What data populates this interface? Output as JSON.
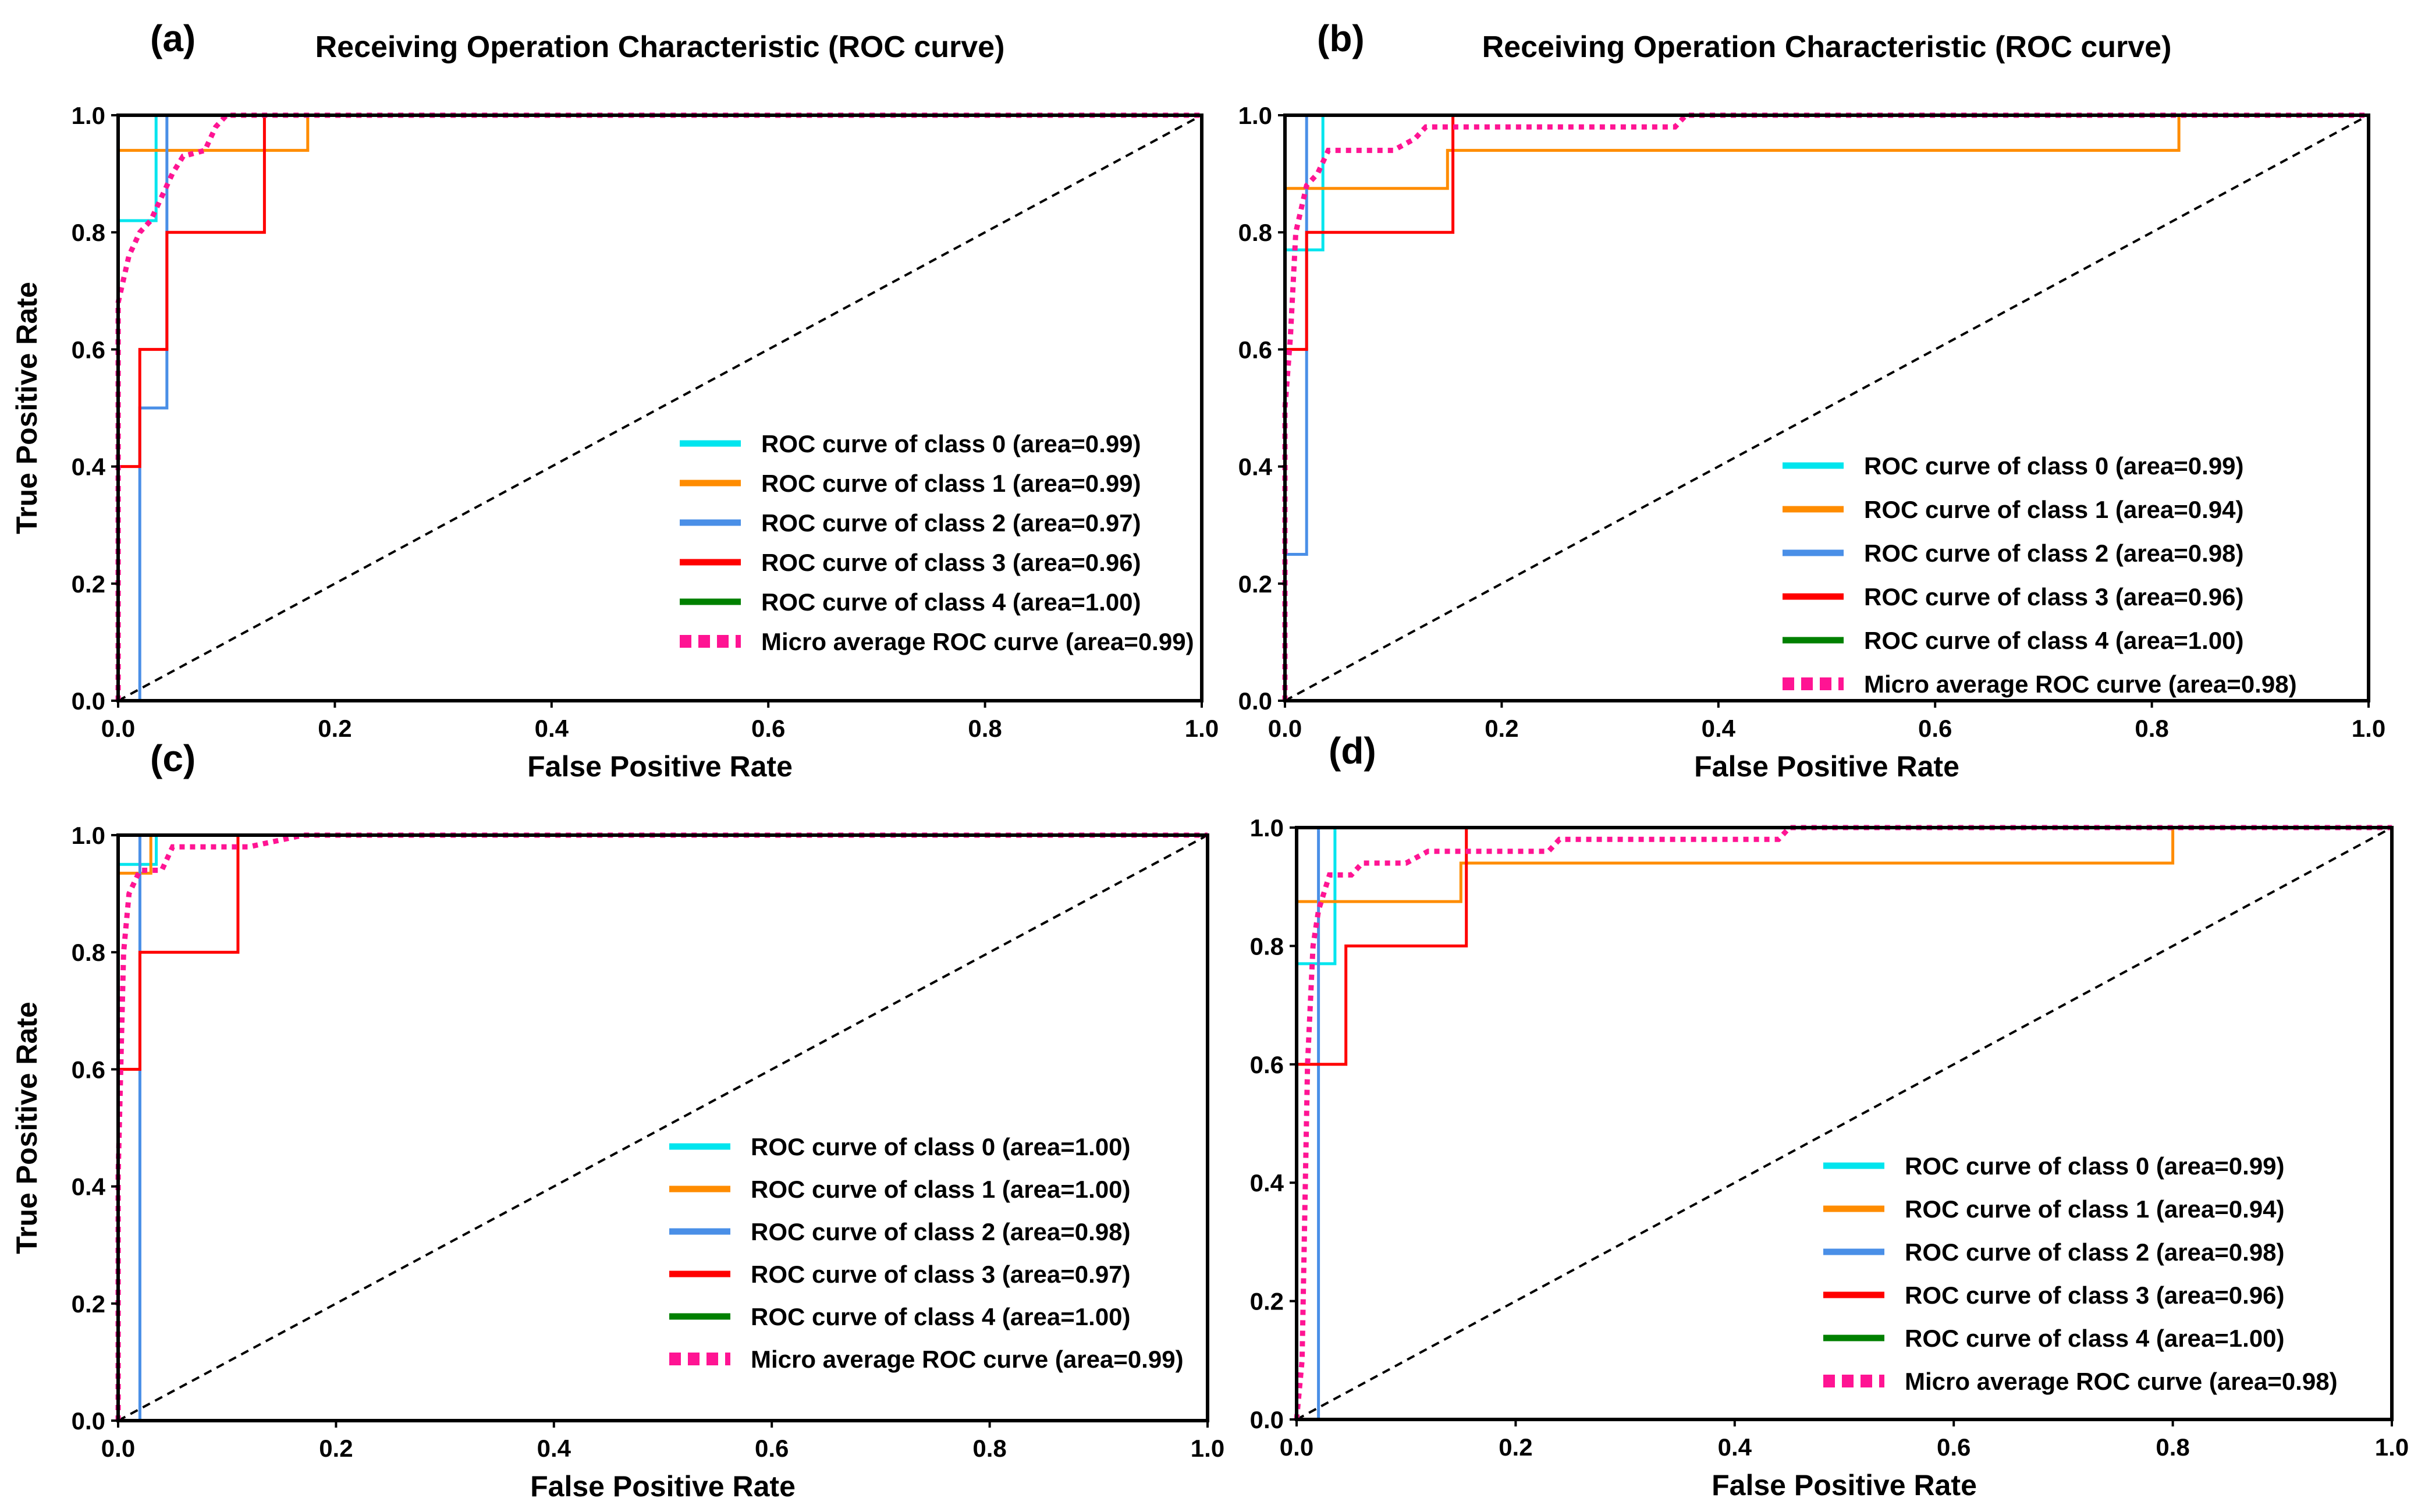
{
  "chart_data": [
    {
      "type": "line",
      "panel": "(a)",
      "title": "Receiving Operation Characteristic (ROC curve)",
      "xlabel": "False Positive Rate",
      "ylabel": "True Positive Rate",
      "xlim": [
        0,
        1
      ],
      "ylim": [
        0,
        1
      ],
      "xticks": [
        "0.0",
        "0.2",
        "0.4",
        "0.6",
        "0.8",
        "1.0"
      ],
      "yticks": [
        "0.0",
        "0.2",
        "0.4",
        "0.6",
        "0.8",
        "1.0"
      ],
      "legend_position": "lower-right",
      "series": [
        {
          "name": "ROC curve of class 0 (area=0.99)",
          "color": "#00e5ee",
          "style": "solid",
          "x": [
            0,
            0,
            0.035,
            0.035,
            1
          ],
          "y": [
            0,
            0.82,
            0.82,
            1,
            1
          ]
        },
        {
          "name": "ROC curve of class 1 (area=0.99)",
          "color": "#ff8c00",
          "style": "solid",
          "x": [
            0,
            0,
            0.175,
            0.175,
            1
          ],
          "y": [
            0,
            0.94,
            0.94,
            1,
            1
          ]
        },
        {
          "name": "ROC curve of class 2 (area=0.97)",
          "color": "#4a8fe7",
          "style": "solid",
          "x": [
            0,
            0.02,
            0.02,
            0.045,
            0.045,
            1
          ],
          "y": [
            0,
            0,
            0.5,
            0.5,
            1,
            1
          ]
        },
        {
          "name": "ROC curve of class 3 (area=0.96)",
          "color": "#ff0000",
          "style": "solid",
          "x": [
            0,
            0,
            0.02,
            0.02,
            0.045,
            0.045,
            0.135,
            0.135,
            1
          ],
          "y": [
            0,
            0.4,
            0.4,
            0.6,
            0.6,
            0.8,
            0.8,
            1,
            1
          ]
        },
        {
          "name": "ROC curve of class 4 (area=1.00)",
          "color": "#008000",
          "style": "solid",
          "x": [
            0,
            0,
            1
          ],
          "y": [
            0,
            1,
            1
          ]
        },
        {
          "name": "Micro average ROC curve (area=0.99)",
          "color": "#ff1493",
          "style": "dotted",
          "x": [
            0,
            0,
            0.01,
            0.02,
            0.03,
            0.04,
            0.05,
            0.06,
            0.08,
            0.09,
            0.1,
            1
          ],
          "y": [
            0,
            0.68,
            0.76,
            0.8,
            0.82,
            0.86,
            0.9,
            0.93,
            0.94,
            0.98,
            1,
            1
          ]
        }
      ]
    },
    {
      "type": "line",
      "panel": "(b)",
      "title": "Receiving Operation Characteristic (ROC curve)",
      "xlabel": "False Positive Rate",
      "ylabel": "",
      "xlim": [
        0,
        1
      ],
      "ylim": [
        0,
        1
      ],
      "xticks": [
        "0.0",
        "0.2",
        "0.4",
        "0.6",
        "0.8",
        "1.0"
      ],
      "yticks": [
        "0.0",
        "0.2",
        "0.4",
        "0.6",
        "0.8",
        "1.0"
      ],
      "legend_position": "lower-right",
      "series": [
        {
          "name": "ROC curve of class 0 (area=0.99)",
          "color": "#00e5ee",
          "style": "solid",
          "x": [
            0,
            0,
            0.035,
            0.035,
            1
          ],
          "y": [
            0,
            0.77,
            0.77,
            1,
            1
          ]
        },
        {
          "name": "ROC curve of class 1 (area=0.94)",
          "color": "#ff8c00",
          "style": "solid",
          "x": [
            0,
            0,
            0.15,
            0.15,
            0.825,
            0.825,
            1
          ],
          "y": [
            0,
            0.875,
            0.875,
            0.94,
            0.94,
            1,
            1
          ]
        },
        {
          "name": "ROC curve of class 2 (area=0.98)",
          "color": "#4a8fe7",
          "style": "solid",
          "x": [
            0,
            0,
            0.02,
            0.02,
            1
          ],
          "y": [
            0,
            0.25,
            0.25,
            1,
            1
          ]
        },
        {
          "name": "ROC curve of class 3 (area=0.96)",
          "color": "#ff0000",
          "style": "solid",
          "x": [
            0,
            0,
            0.02,
            0.02,
            0.155,
            0.155,
            1
          ],
          "y": [
            0,
            0.6,
            0.6,
            0.8,
            0.8,
            1,
            1
          ]
        },
        {
          "name": "ROC curve of class 4 (area=1.00)",
          "color": "#008000",
          "style": "solid",
          "x": [
            0,
            0,
            1
          ],
          "y": [
            0,
            1,
            1
          ]
        },
        {
          "name": "Micro average ROC curve (area=0.98)",
          "color": "#ff1493",
          "style": "dotted",
          "x": [
            0,
            0,
            0.005,
            0.01,
            0.02,
            0.03,
            0.04,
            0.1,
            0.12,
            0.13,
            0.175,
            0.36,
            0.37,
            1
          ],
          "y": [
            0,
            0.5,
            0.62,
            0.8,
            0.88,
            0.9,
            0.94,
            0.94,
            0.96,
            0.98,
            0.98,
            0.98,
            1,
            1
          ]
        }
      ]
    },
    {
      "type": "line",
      "panel": "(c)",
      "title": "",
      "xlabel": "False Positive Rate",
      "ylabel": "True Positive Rate",
      "xlim": [
        0,
        1
      ],
      "ylim": [
        0,
        1
      ],
      "xticks": [
        "0.0",
        "0.2",
        "0.4",
        "0.6",
        "0.8",
        "1.0"
      ],
      "yticks": [
        "0.0",
        "0.2",
        "0.4",
        "0.6",
        "0.8",
        "1.0"
      ],
      "legend_position": "lower-right",
      "series": [
        {
          "name": "ROC curve of class 0 (area=1.00)",
          "color": "#00e5ee",
          "style": "solid",
          "x": [
            0,
            0,
            0.035,
            0.035,
            1
          ],
          "y": [
            0,
            0.95,
            0.95,
            1,
            1
          ]
        },
        {
          "name": "ROC curve of class 1 (area=1.00)",
          "color": "#ff8c00",
          "style": "solid",
          "x": [
            0,
            0,
            0.03,
            0.03,
            1
          ],
          "y": [
            0,
            0.935,
            0.935,
            1,
            1
          ]
        },
        {
          "name": "ROC curve of class 2 (area=0.98)",
          "color": "#4a8fe7",
          "style": "solid",
          "x": [
            0,
            0.02,
            0.02,
            1
          ],
          "y": [
            0,
            0,
            1,
            1
          ]
        },
        {
          "name": "ROC curve of class 3 (area=0.97)",
          "color": "#ff0000",
          "style": "solid",
          "x": [
            0,
            0,
            0.02,
            0.02,
            0.11,
            0.11,
            1
          ],
          "y": [
            0,
            0.6,
            0.6,
            0.8,
            0.8,
            1,
            1
          ]
        },
        {
          "name": "ROC curve of class 4 (area=1.00)",
          "color": "#008000",
          "style": "solid",
          "x": [
            0,
            0,
            1
          ],
          "y": [
            0,
            1,
            1
          ]
        },
        {
          "name": "Micro average ROC curve (area=0.99)",
          "color": "#ff1493",
          "style": "dotted",
          "x": [
            0,
            0,
            0.005,
            0.01,
            0.02,
            0.04,
            0.05,
            0.07,
            0.12,
            0.17,
            1
          ],
          "y": [
            0,
            0.42,
            0.8,
            0.9,
            0.94,
            0.94,
            0.98,
            0.98,
            0.98,
            1,
            1
          ]
        }
      ]
    },
    {
      "type": "line",
      "panel": "(d)",
      "title": "",
      "xlabel": "False Positive Rate",
      "ylabel": "",
      "xlim": [
        0,
        1
      ],
      "ylim": [
        0,
        1
      ],
      "xticks": [
        "0.0",
        "0.2",
        "0.4",
        "0.6",
        "0.8",
        "1.0"
      ],
      "yticks": [
        "0.0",
        "0.2",
        "0.4",
        "0.6",
        "0.8",
        "1.0"
      ],
      "legend_position": "lower-right",
      "series": [
        {
          "name": "ROC curve of class 0 (area=0.99)",
          "color": "#00e5ee",
          "style": "solid",
          "x": [
            0,
            0,
            0.035,
            0.035,
            1
          ],
          "y": [
            0,
            0.77,
            0.77,
            1,
            1
          ]
        },
        {
          "name": "ROC curve of class 1 (area=0.94)",
          "color": "#ff8c00",
          "style": "solid",
          "x": [
            0,
            0,
            0.15,
            0.15,
            0.8,
            0.8,
            1
          ],
          "y": [
            0,
            0.875,
            0.875,
            0.94,
            0.94,
            1,
            1
          ]
        },
        {
          "name": "ROC curve of class 2 (area=0.98)",
          "color": "#4a8fe7",
          "style": "solid",
          "x": [
            0,
            0.02,
            0.02,
            1
          ],
          "y": [
            0,
            0,
            1,
            1
          ]
        },
        {
          "name": "ROC curve of class 3 (area=0.96)",
          "color": "#ff0000",
          "style": "solid",
          "x": [
            0,
            0,
            0.045,
            0.045,
            0.155,
            0.155,
            1
          ],
          "y": [
            0,
            0.6,
            0.6,
            0.8,
            0.8,
            1,
            1
          ]
        },
        {
          "name": "ROC curve of class 4 (area=1.00)",
          "color": "#008000",
          "style": "solid",
          "x": [
            0,
            0,
            1
          ],
          "y": [
            0,
            1,
            1
          ]
        },
        {
          "name": "Micro average ROC curve (area=0.98)",
          "color": "#ff1493",
          "style": "dotted",
          "x": [
            0,
            0.005,
            0.01,
            0.015,
            0.02,
            0.03,
            0.05,
            0.06,
            0.1,
            0.12,
            0.23,
            0.24,
            0.44,
            0.45,
            1
          ],
          "y": [
            0,
            0.1,
            0.6,
            0.8,
            0.86,
            0.92,
            0.92,
            0.94,
            0.94,
            0.96,
            0.96,
            0.98,
            0.98,
            1,
            1
          ]
        }
      ]
    }
  ]
}
